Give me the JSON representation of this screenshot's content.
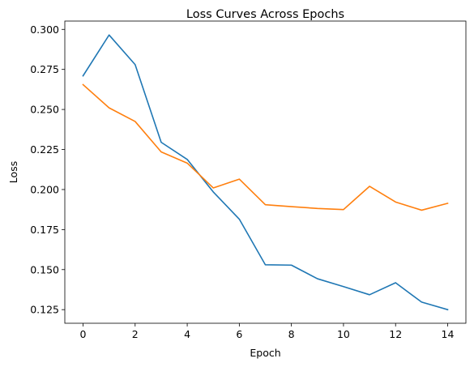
{
  "chart_data": {
    "type": "line",
    "title": "Loss Curves Across Epochs",
    "xlabel": "Epoch",
    "ylabel": "Loss",
    "x": [
      0,
      1,
      2,
      3,
      4,
      5,
      6,
      7,
      8,
      9,
      10,
      11,
      12,
      13,
      14
    ],
    "xlim": [
      -0.7,
      14.7
    ],
    "ylim": [
      0.1165,
      0.3052
    ],
    "xticks": [
      0,
      2,
      4,
      6,
      8,
      10,
      12,
      14
    ],
    "yticks": [
      0.125,
      0.15,
      0.175,
      0.2,
      0.225,
      0.25,
      0.275,
      0.3
    ],
    "xtick_labels": [
      "0",
      "2",
      "4",
      "6",
      "8",
      "10",
      "12",
      "14"
    ],
    "ytick_labels": [
      "0.125",
      "0.150",
      "0.175",
      "0.200",
      "0.225",
      "0.250",
      "0.275",
      "0.300"
    ],
    "grid": false,
    "legend": "none",
    "series": [
      {
        "color": "#1f77b4",
        "values": [
          0.271,
          0.2965,
          0.278,
          0.2295,
          0.2188,
          0.1985,
          0.1815,
          0.153,
          0.1528,
          0.1443,
          0.1394,
          0.1343,
          0.1418,
          0.1297,
          0.125
        ]
      },
      {
        "color": "#ff7f0e",
        "values": [
          0.2655,
          0.251,
          0.2425,
          0.2235,
          0.2165,
          0.201,
          0.2065,
          0.1905,
          0.1893,
          0.1882,
          0.1875,
          0.202,
          0.1922,
          0.1871,
          0.1914
        ]
      }
    ]
  }
}
